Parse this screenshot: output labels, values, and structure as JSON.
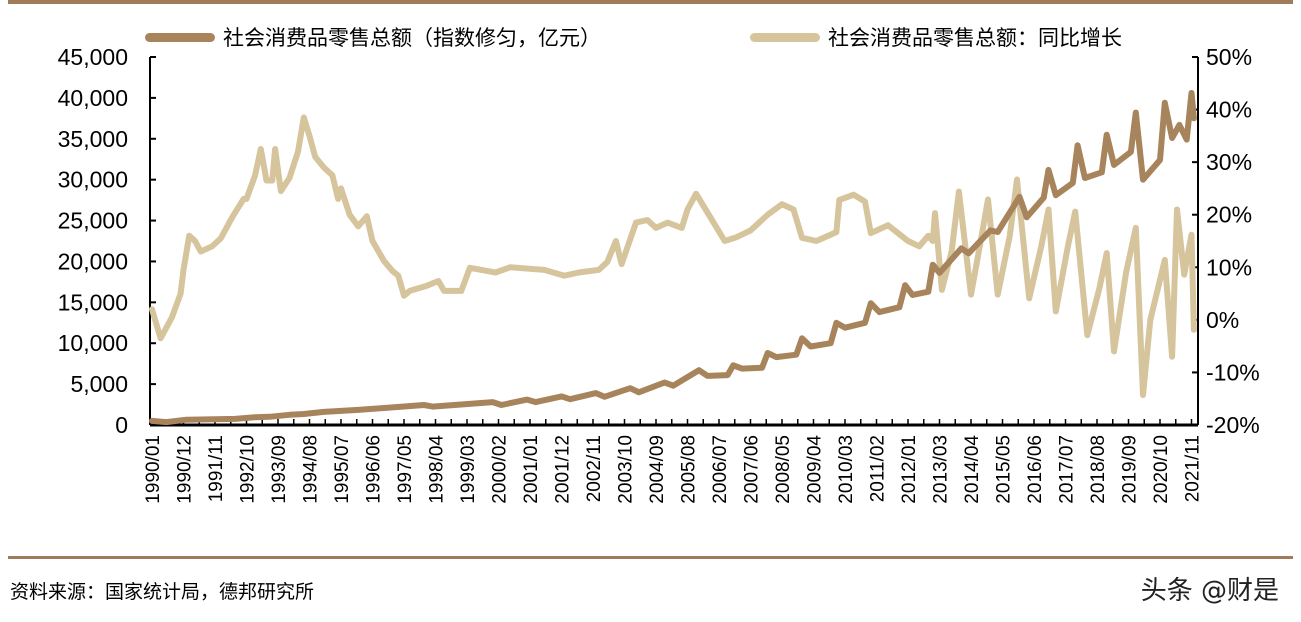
{
  "chart_data": {
    "type": "line",
    "title": "",
    "legend_position": "top",
    "grid": false,
    "x_ticks": [
      "1990/01",
      "1990/12",
      "1991/11",
      "1992/10",
      "1993/09",
      "1994/08",
      "1995/07",
      "1996/06",
      "1997/05",
      "1998/04",
      "1999/03",
      "2000/02",
      "2001/01",
      "2001/12",
      "2002/11",
      "2003/10",
      "2004/09",
      "2005/08",
      "2006/07",
      "2007/06",
      "2008/05",
      "2009/04",
      "2010/03",
      "2011/02",
      "2012/01",
      "2013/03",
      "2014/04",
      "2015/05",
      "2016/06",
      "2017/07",
      "2018/08",
      "2019/09",
      "2020/10",
      "2021/11"
    ],
    "y_left": {
      "ylim": [
        0,
        45000
      ],
      "ticks": [
        "0",
        "5,000",
        "10,000",
        "15,000",
        "20,000",
        "25,000",
        "30,000",
        "35,000",
        "40,000",
        "45,000"
      ],
      "tick_values": [
        0,
        5000,
        10000,
        15000,
        20000,
        25000,
        30000,
        35000,
        40000,
        45000
      ]
    },
    "y_right": {
      "ylim": [
        -20,
        50
      ],
      "ticks": [
        "-20%",
        "-10%",
        "0%",
        "10%",
        "20%",
        "30%",
        "40%",
        "50%"
      ],
      "tick_values": [
        -20,
        -10,
        0,
        10,
        20,
        30,
        40,
        50
      ]
    },
    "series": [
      {
        "name": "社会消费品零售总额（指数修匀，亿元）",
        "axis": "left",
        "color": "#a8845c",
        "points": [
          [
            "1990/01",
            500
          ],
          [
            "1990/06",
            350
          ],
          [
            "1991/01",
            650
          ],
          [
            "1992/06",
            750
          ],
          [
            "1993/01",
            950
          ],
          [
            "1993/06",
            1000
          ],
          [
            "1994/01",
            1250
          ],
          [
            "1994/06",
            1350
          ],
          [
            "1995/01",
            1600
          ],
          [
            "1996/01",
            1850
          ],
          [
            "1997/01",
            2150
          ],
          [
            "1997/12",
            2450
          ],
          [
            "1998/03",
            2250
          ],
          [
            "1999/12",
            2800
          ],
          [
            "2000/03",
            2450
          ],
          [
            "2000/12",
            3100
          ],
          [
            "2001/03",
            2800
          ],
          [
            "2001/12",
            3500
          ],
          [
            "2002/03",
            3150
          ],
          [
            "2002/12",
            3900
          ],
          [
            "2003/03",
            3450
          ],
          [
            "2003/12",
            4500
          ],
          [
            "2004/03",
            4000
          ],
          [
            "2004/12",
            5200
          ],
          [
            "2005/03",
            4800
          ],
          [
            "2005/12",
            6700
          ],
          [
            "2006/03",
            6000
          ],
          [
            "2006/10",
            6100
          ],
          [
            "2006/12",
            7300
          ],
          [
            "2007/03",
            6900
          ],
          [
            "2007/10",
            7000
          ],
          [
            "2007/12",
            8800
          ],
          [
            "2008/03",
            8300
          ],
          [
            "2008/10",
            8600
          ],
          [
            "2008/12",
            10600
          ],
          [
            "2009/03",
            9600
          ],
          [
            "2009/10",
            10000
          ],
          [
            "2009/12",
            12500
          ],
          [
            "2010/03",
            11900
          ],
          [
            "2010/10",
            12500
          ],
          [
            "2010/12",
            14900
          ],
          [
            "2011/03",
            13800
          ],
          [
            "2011/10",
            14400
          ],
          [
            "2011/12",
            17100
          ],
          [
            "2012/03",
            15900
          ],
          [
            "2012/10",
            16300
          ],
          [
            "2012/12",
            19600
          ],
          [
            "2013/03",
            18600
          ],
          [
            "2013/12",
            21600
          ],
          [
            "2014/03",
            21000
          ],
          [
            "2014/12",
            23800
          ],
          [
            "2015/03",
            23600
          ],
          [
            "2015/12",
            27900
          ],
          [
            "2016/03",
            25400
          ],
          [
            "2016/10",
            27800
          ],
          [
            "2016/12",
            31200
          ],
          [
            "2017/03",
            28100
          ],
          [
            "2017/10",
            29600
          ],
          [
            "2017/12",
            34200
          ],
          [
            "2018/03",
            30200
          ],
          [
            "2018/10",
            30900
          ],
          [
            "2018/12",
            35500
          ],
          [
            "2019/03",
            31800
          ],
          [
            "2019/10",
            33400
          ],
          [
            "2019/12",
            38200
          ],
          [
            "2020/03",
            30000
          ],
          [
            "2020/10",
            32400
          ],
          [
            "2020/12",
            39400
          ],
          [
            "2021/03",
            35100
          ],
          [
            "2021/06",
            36700
          ],
          [
            "2021/09",
            34900
          ],
          [
            "2021/11",
            40600
          ],
          [
            "2021/12",
            37500
          ]
        ]
      },
      {
        "name": "社会消费品零售总额：同比增长",
        "axis": "right",
        "color": "#d6c49c",
        "points": [
          [
            "1990/01",
            2
          ],
          [
            "1990/04",
            -3.5
          ],
          [
            "1990/08",
            0.5
          ],
          [
            "1990/11",
            5
          ],
          [
            "1990/12",
            9.5
          ],
          [
            "1991/02",
            16
          ],
          [
            "1991/04",
            15
          ],
          [
            "1991/06",
            13
          ],
          [
            "1991/10",
            14
          ],
          [
            "1992/01",
            15.5
          ],
          [
            "1992/05",
            19.5
          ],
          [
            "1992/09",
            23
          ],
          [
            "1992/10",
            23
          ],
          [
            "1993/01",
            27.5
          ],
          [
            "1993/03",
            32.5
          ],
          [
            "1993/05",
            26.5
          ],
          [
            "1993/07",
            26.5
          ],
          [
            "1993/08",
            32.5
          ],
          [
            "1993/10",
            24.5
          ],
          [
            "1994/01",
            27
          ],
          [
            "1994/04",
            32
          ],
          [
            "1994/06",
            38.5
          ],
          [
            "1994/08",
            35
          ],
          [
            "1994/10",
            31
          ],
          [
            "1995/01",
            29
          ],
          [
            "1995/04",
            27.5
          ],
          [
            "1995/06",
            23
          ],
          [
            "1995/07",
            25
          ],
          [
            "1995/10",
            20
          ],
          [
            "1996/01",
            17.8
          ],
          [
            "1996/04",
            19.7
          ],
          [
            "1996/06",
            15
          ],
          [
            "1996/10",
            11.2
          ],
          [
            "1997/01",
            9.3
          ],
          [
            "1997/03",
            8.4
          ],
          [
            "1997/05",
            4.6
          ],
          [
            "1997/07",
            5.5
          ],
          [
            "1998/01",
            6.5
          ],
          [
            "1998/05",
            7.4
          ],
          [
            "1998/07",
            5.5
          ],
          [
            "1999/01",
            5.5
          ],
          [
            "1999/04",
            9.9
          ],
          [
            "2000/01",
            9
          ],
          [
            "2000/06",
            10
          ],
          [
            "2001/06",
            9.5
          ],
          [
            "2002/01",
            8.4
          ],
          [
            "2002/06",
            9
          ],
          [
            "2003/01",
            9.5
          ],
          [
            "2003/04",
            11
          ],
          [
            "2003/07",
            15
          ],
          [
            "2003/09",
            10.6
          ],
          [
            "2004/02",
            18.5
          ],
          [
            "2004/06",
            19
          ],
          [
            "2004/09",
            17.5
          ],
          [
            "2005/01",
            18.5
          ],
          [
            "2005/06",
            17.5
          ],
          [
            "2005/08",
            21
          ],
          [
            "2005/11",
            24
          ],
          [
            "2006/03",
            20.4
          ],
          [
            "2006/09",
            15
          ],
          [
            "2007/01",
            15.7
          ],
          [
            "2007/06",
            17
          ],
          [
            "2007/12",
            20
          ],
          [
            "2008/05",
            22
          ],
          [
            "2008/09",
            21
          ],
          [
            "2008/12",
            15.6
          ],
          [
            "2009/05",
            15
          ],
          [
            "2009/12",
            16.7
          ],
          [
            "2010/01",
            22.8
          ],
          [
            "2010/06",
            23.8
          ],
          [
            "2010/10",
            22.5
          ],
          [
            "2010/12",
            16.5
          ],
          [
            "2011/06",
            18
          ],
          [
            "2012/01",
            15
          ],
          [
            "2012/06",
            14
          ],
          [
            "2012/10",
            16
          ],
          [
            "2012/12",
            15
          ],
          [
            "2013/01",
            20.3
          ],
          [
            "2013/04",
            5.7
          ],
          [
            "2013/08",
            13
          ],
          [
            "2013/11",
            24.4
          ],
          [
            "2014/04",
            4.8
          ],
          [
            "2014/08",
            15
          ],
          [
            "2014/11",
            22.9
          ],
          [
            "2015/03",
            4.8
          ],
          [
            "2015/08",
            16
          ],
          [
            "2015/11",
            26.7
          ],
          [
            "2016/04",
            4.1
          ],
          [
            "2016/09",
            14
          ],
          [
            "2016/12",
            21
          ],
          [
            "2017/03",
            1.6
          ],
          [
            "2017/08",
            14
          ],
          [
            "2017/11",
            20.6
          ],
          [
            "2018/04",
            -2.9
          ],
          [
            "2018/09",
            6
          ],
          [
            "2018/12",
            12.7
          ],
          [
            "2019/03",
            -6
          ],
          [
            "2019/08",
            9
          ],
          [
            "2019/12",
            17.5
          ],
          [
            "2020/03",
            -14.3
          ],
          [
            "2020/06",
            0
          ],
          [
            "2020/12",
            11.4
          ],
          [
            "2021/03",
            -7
          ],
          [
            "2021/05",
            21
          ],
          [
            "2021/08",
            8.6
          ],
          [
            "2021/11",
            16.2
          ],
          [
            "2021/12",
            -1.9
          ]
        ]
      }
    ]
  },
  "legend": {
    "item1": "社会消费品零售总额（指数修匀，亿元）",
    "item2": "社会消费品零售总额：同比增长"
  },
  "footer": {
    "source": "资料来源：国家统计局，德邦研究所",
    "watermark": "头条 @财是"
  }
}
